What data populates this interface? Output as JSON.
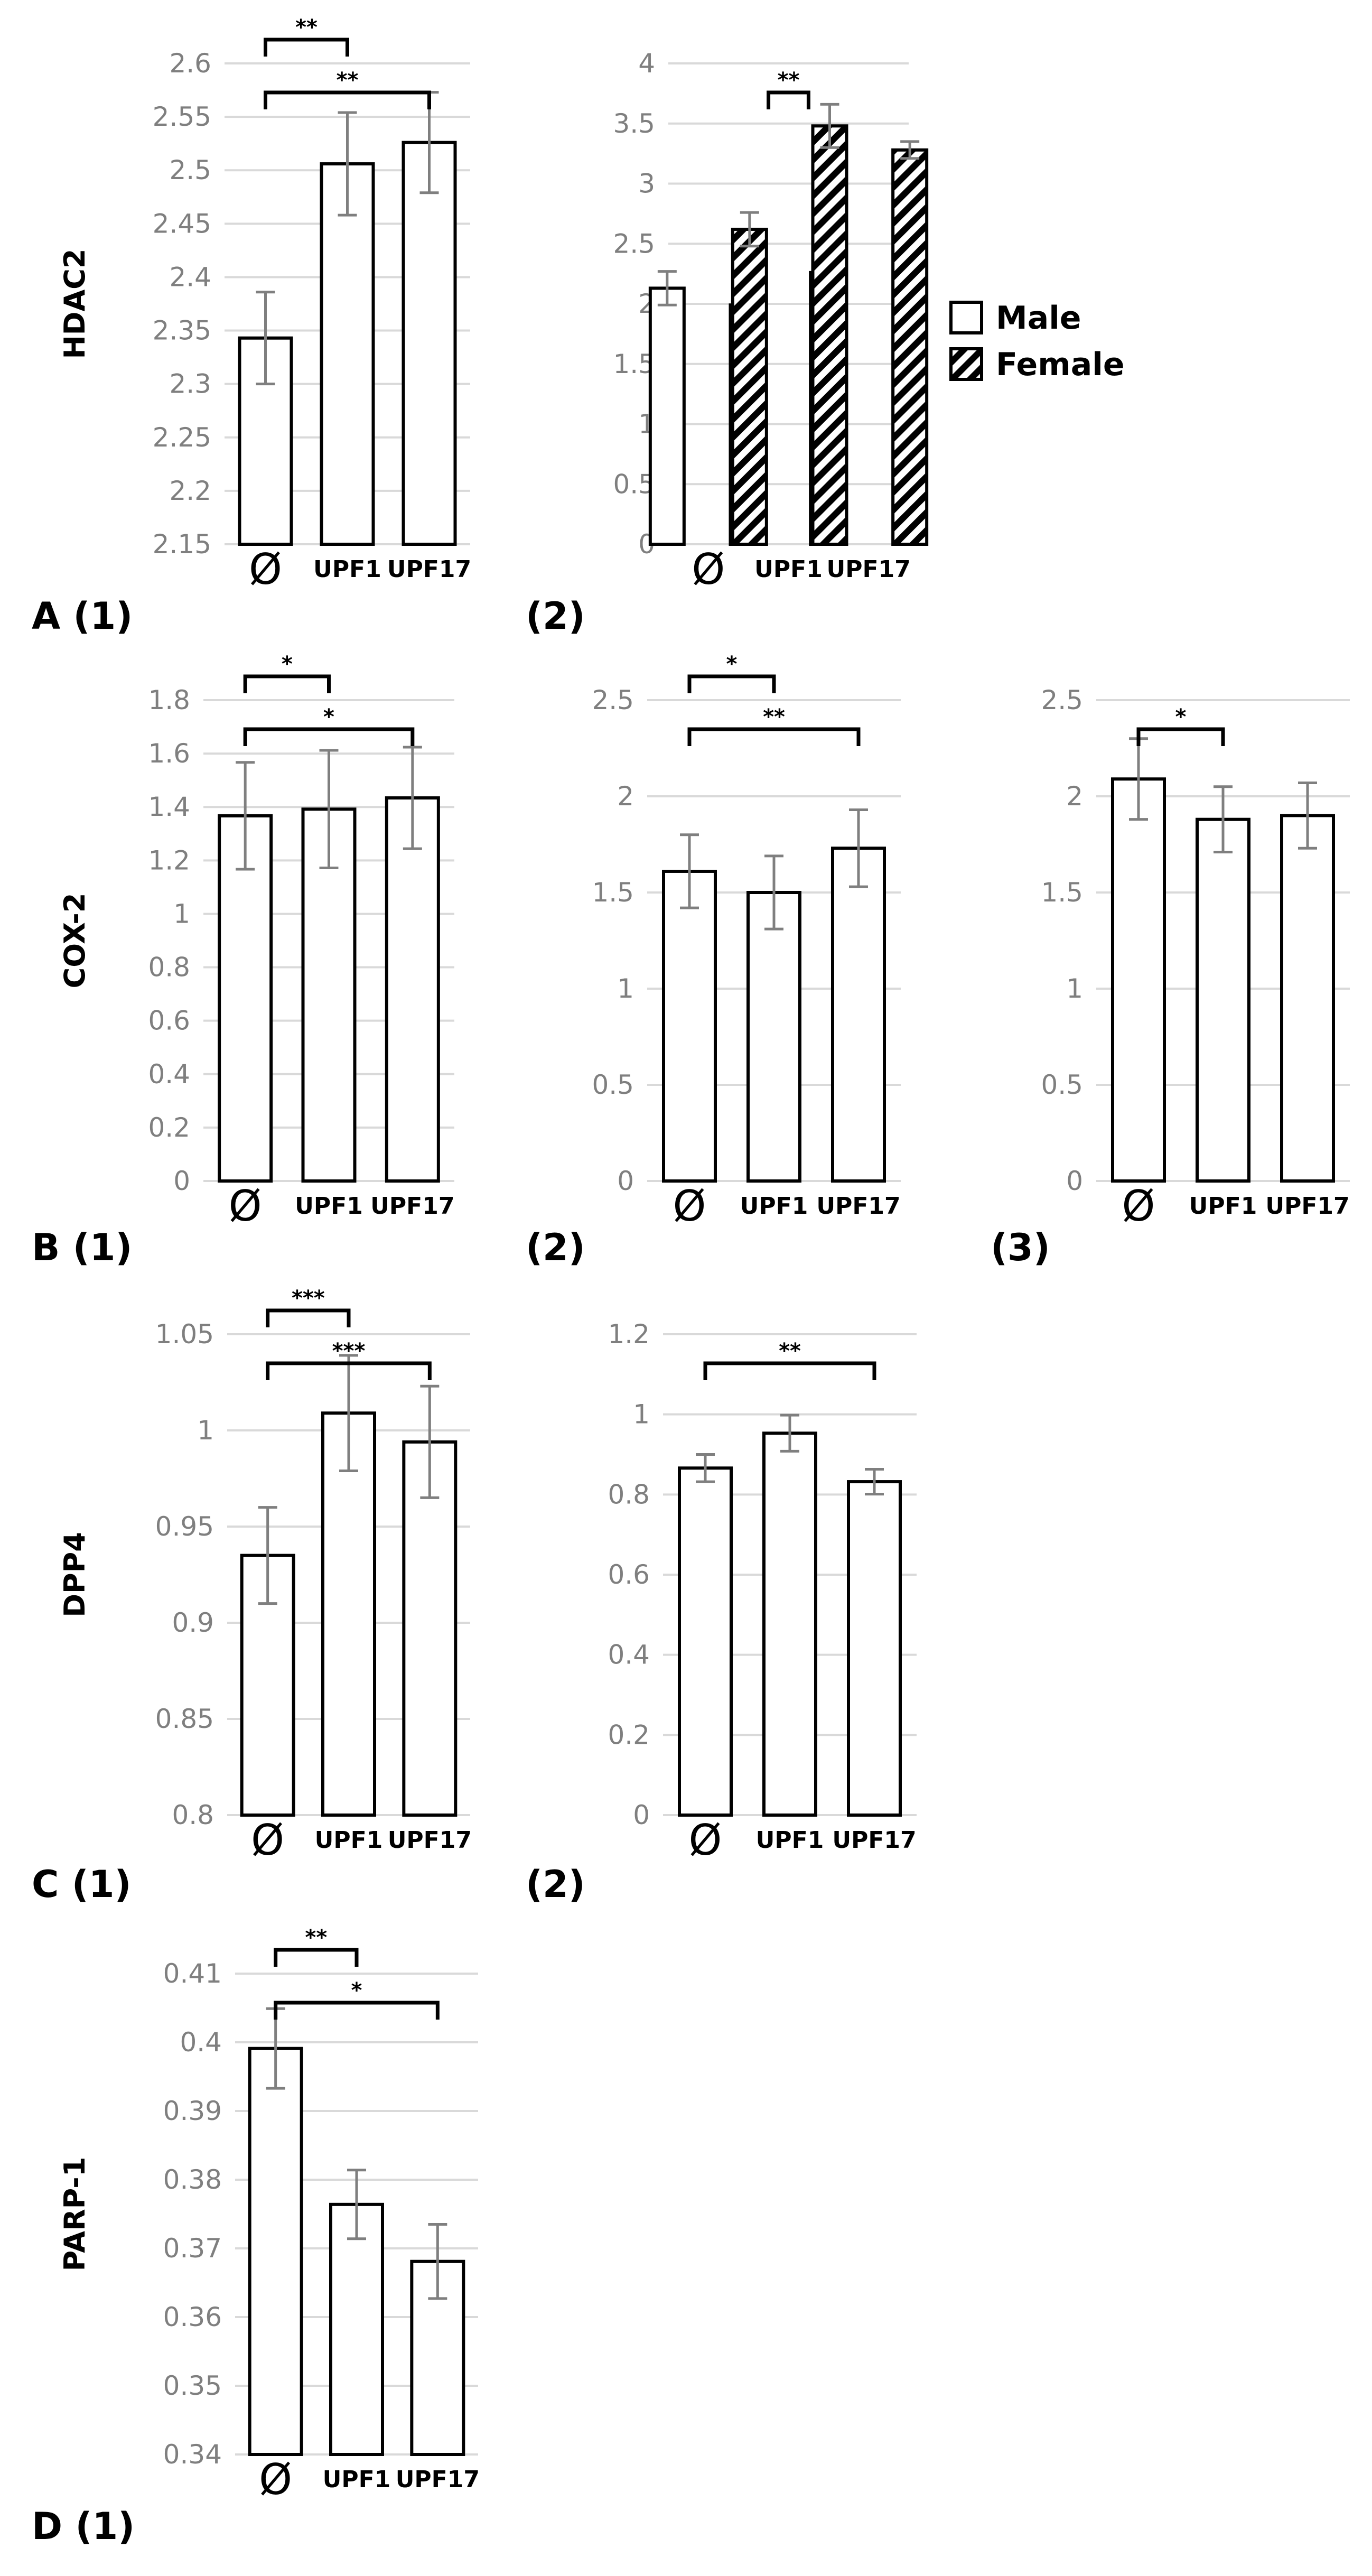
{
  "chart_data": [
    {
      "id": "A1",
      "type": "bar",
      "panel_label": "A (1)",
      "ylabel": "HDAC2",
      "ylim": [
        2.15,
        2.6
      ],
      "yticks": [
        2.15,
        2.2,
        2.25,
        2.3,
        2.35,
        2.4,
        2.45,
        2.5,
        2.55,
        2.6
      ],
      "categories": [
        "Ø",
        "UPF1",
        "UPF17"
      ],
      "series": [
        {
          "name": "",
          "values": [
            2.343,
            2.506,
            2.526
          ],
          "errors": [
            0.043,
            0.048,
            0.047
          ]
        }
      ],
      "significance": [
        {
          "from": 0,
          "to": 1,
          "label": "**"
        },
        {
          "from": 0,
          "to": 2,
          "label": "**"
        }
      ]
    },
    {
      "id": "A2",
      "type": "bar",
      "panel_label": "(2)",
      "ylabel": "",
      "ylim": [
        0,
        4
      ],
      "yticks": [
        0,
        0.5,
        1,
        1.5,
        2,
        2.5,
        3,
        3.5,
        4
      ],
      "categories": [
        "Ø",
        "UPF1",
        "UPF17"
      ],
      "series": [
        {
          "name": "Male",
          "values": [
            2.13,
            1.99,
            2.26
          ],
          "errors": [
            0.14,
            0.13,
            0.18
          ]
        },
        {
          "name": "Female",
          "values": [
            2.62,
            3.48,
            3.28
          ],
          "errors": [
            0.14,
            0.18,
            0.07
          ]
        }
      ],
      "significance": [
        {
          "from": 0.75,
          "to": 1.25,
          "label": "**"
        }
      ]
    },
    {
      "id": "B1",
      "type": "bar",
      "panel_label": "B (1)",
      "ylabel": "COX-2",
      "ylim": [
        0,
        1.8
      ],
      "yticks": [
        0,
        0.2,
        0.4,
        0.6,
        0.8,
        1,
        1.2,
        1.4,
        1.6,
        1.8
      ],
      "categories": [
        "Ø",
        "UPF1",
        "UPF17"
      ],
      "series": [
        {
          "name": "",
          "values": [
            1.367,
            1.392,
            1.434
          ],
          "errors": [
            0.2,
            0.22,
            0.19
          ]
        }
      ],
      "significance": [
        {
          "from": 0,
          "to": 1,
          "label": "*"
        },
        {
          "from": 0,
          "to": 2,
          "label": "*"
        }
      ]
    },
    {
      "id": "B2",
      "type": "bar",
      "panel_label": "(2)",
      "ylabel": "",
      "ylim": [
        0,
        2.5
      ],
      "yticks": [
        0,
        0.5,
        1,
        1.5,
        2,
        2.5
      ],
      "categories": [
        "Ø",
        "UPF1",
        "UPF17"
      ],
      "series": [
        {
          "name": "",
          "values": [
            1.61,
            1.5,
            1.73
          ],
          "errors": [
            0.19,
            0.19,
            0.2
          ]
        }
      ],
      "significance": [
        {
          "from": 0,
          "to": 1,
          "label": "*"
        },
        {
          "from": 0,
          "to": 2,
          "label": "**"
        }
      ]
    },
    {
      "id": "B3",
      "type": "bar",
      "panel_label": "(3)",
      "ylabel": "",
      "ylim": [
        0,
        2.5
      ],
      "yticks": [
        0,
        0.5,
        1,
        1.5,
        2,
        2.5
      ],
      "categories": [
        "Ø",
        "UPF1",
        "UPF17"
      ],
      "series": [
        {
          "name": "",
          "values": [
            2.09,
            1.88,
            1.9
          ],
          "errors": [
            0.21,
            0.17,
            0.17
          ]
        }
      ],
      "significance": [
        {
          "from": 0,
          "to": 1,
          "label": "*"
        }
      ]
    },
    {
      "id": "C1",
      "type": "bar",
      "panel_label": "C (1)",
      "ylabel": "DPP4",
      "ylim": [
        0.8,
        1.05
      ],
      "yticks": [
        0.8,
        0.85,
        0.9,
        0.95,
        1,
        1.05
      ],
      "categories": [
        "Ø",
        "UPF1",
        "UPF17"
      ],
      "series": [
        {
          "name": "",
          "values": [
            0.935,
            1.009,
            0.994
          ],
          "errors": [
            0.025,
            0.03,
            0.029
          ]
        }
      ],
      "significance": [
        {
          "from": 0,
          "to": 1,
          "label": "***"
        },
        {
          "from": 0,
          "to": 2,
          "label": "***"
        }
      ]
    },
    {
      "id": "C2",
      "type": "bar",
      "panel_label": "(2)",
      "ylabel": "",
      "ylim": [
        0,
        1.2
      ],
      "yticks": [
        0,
        0.2,
        0.4,
        0.6,
        0.8,
        1,
        1.2
      ],
      "categories": [
        "Ø",
        "UPF1",
        "UPF17"
      ],
      "series": [
        {
          "name": "",
          "values": [
            0.866,
            0.953,
            0.832
          ],
          "errors": [
            0.034,
            0.045,
            0.031
          ]
        }
      ],
      "significance": [
        {
          "from": 0,
          "to": 2,
          "label": "**"
        }
      ]
    },
    {
      "id": "D1",
      "type": "bar",
      "panel_label": "D (1)",
      "ylabel": "PARP-1",
      "ylim": [
        0.34,
        0.41
      ],
      "yticks": [
        0.34,
        0.35,
        0.36,
        0.37,
        0.38,
        0.39,
        0.4,
        0.41
      ],
      "categories": [
        "Ø",
        "UPF1",
        "UPF17"
      ],
      "series": [
        {
          "name": "",
          "values": [
            0.3991,
            0.3764,
            0.3681
          ],
          "errors": [
            0.0058,
            0.005,
            0.0054
          ]
        }
      ],
      "significance": [
        {
          "from": 0,
          "to": 1,
          "label": "**"
        },
        {
          "from": 0,
          "to": 2,
          "label": "*"
        }
      ]
    }
  ]
}
